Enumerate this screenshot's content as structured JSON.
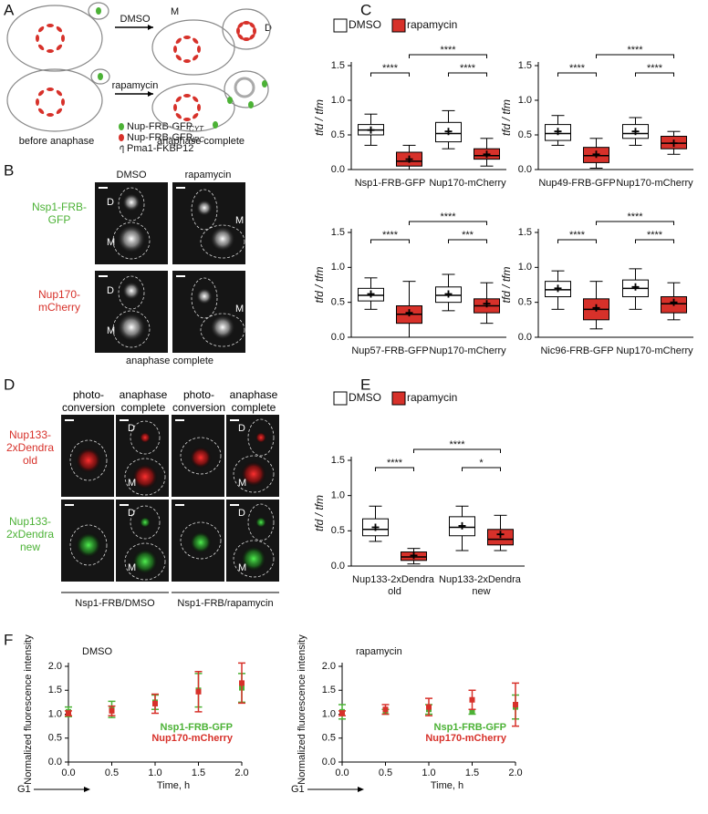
{
  "panel_labels": [
    "A",
    "B",
    "C",
    "D",
    "E",
    "F"
  ],
  "panel_a": {
    "arrows": [
      "DMSO",
      "rapamycin"
    ],
    "cell_labels": [
      "M",
      "D"
    ],
    "stages": [
      "before anaphase",
      "anaphase complete"
    ],
    "legend": [
      {
        "text": "Nup-FRB-GFP",
        "subscript": "CYT"
      },
      {
        "text": "Nup-FRB-GFP",
        "subscript": "NPC"
      },
      {
        "text": "Pma1-FKBP12"
      }
    ]
  },
  "panel_b": {
    "columns": [
      "DMSO",
      "rapamycin"
    ],
    "rows": [
      "Nsp1-FRB-GFP",
      "Nup170-mCherry"
    ],
    "cell_labels": [
      [
        [
          "D",
          "M"
        ],
        [
          "M"
        ]
      ],
      [
        [
          "D",
          "M"
        ],
        [
          "M"
        ]
      ]
    ],
    "caption": "anaphase complete"
  },
  "panel_d": {
    "columns": [
      "photo-conversion",
      "anaphase complete",
      "photo-conversion",
      "anaphase complete"
    ],
    "rows": [
      "Nup133-2xDendra old",
      "Nup133-2xDendra new"
    ],
    "cell_labels": [
      [
        [],
        [
          "D",
          "M"
        ],
        [],
        [
          "D",
          "M"
        ]
      ],
      [
        [],
        [
          "D",
          "M"
        ],
        [],
        [
          "D",
          "M"
        ]
      ]
    ],
    "groups": [
      "Nsp1-FRB/DMSO",
      "Nsp1-FRB/rapamycin"
    ]
  },
  "chart_data": [
    {
      "type": "box",
      "ylabel": "tfd / tfm",
      "categories": [
        "Nsp1-FRB-GFP",
        "Nup170-mCherry"
      ],
      "ylim": [
        0,
        1.5
      ],
      "yticks": [
        {
          "value": 0,
          "label": "0.0"
        },
        0.5,
        {
          "value": 1,
          "label": "1.0"
        },
        1.5
      ],
      "legend": "top left",
      "significance": [
        "****",
        "****",
        "****"
      ],
      "series": [
        {
          "name": "DMSO",
          "color": "#ffffff",
          "min": [
            0.35,
            0.3
          ],
          "q1": [
            0.5,
            0.4
          ],
          "median": [
            0.57,
            0.52
          ],
          "q3": [
            0.65,
            0.68
          ],
          "max": [
            0.8,
            0.85
          ],
          "mean": [
            0.57,
            0.55
          ]
        },
        {
          "name": "rapamycin",
          "color": "#d7312a",
          "min": [
            0,
            0.05
          ],
          "q1": [
            0.05,
            0.15
          ],
          "median": [
            0.12,
            0.2
          ],
          "q3": [
            0.25,
            0.3
          ],
          "max": [
            0.35,
            0.45
          ],
          "mean": [
            0.15,
            0.22
          ]
        }
      ]
    },
    {
      "type": "box",
      "ylabel": "tfd / tfm",
      "categories": [
        "Nup49-FRB-GFP",
        "Nup170-mCherry"
      ],
      "ylim": [
        0,
        1.5
      ],
      "yticks": [
        {
          "value": 0,
          "label": "0.0"
        },
        0.5,
        {
          "value": 1,
          "label": "1.0"
        },
        1.5
      ],
      "significance": [
        "****",
        "****",
        "****"
      ],
      "series": [
        {
          "color": "#ffffff",
          "min": [
            0.35,
            0.35
          ],
          "q1": [
            0.42,
            0.45
          ],
          "median": [
            0.52,
            0.52
          ],
          "q3": [
            0.65,
            0.65
          ],
          "max": [
            0.78,
            0.75
          ],
          "mean": [
            0.55,
            0.55
          ]
        },
        {
          "color": "#d7312a",
          "min": [
            0.02,
            0.22
          ],
          "q1": [
            0.1,
            0.3
          ],
          "median": [
            0.2,
            0.38
          ],
          "q3": [
            0.32,
            0.48
          ],
          "max": [
            0.45,
            0.55
          ],
          "mean": [
            0.22,
            0.38
          ]
        }
      ]
    },
    {
      "type": "box",
      "ylabel": "tfd / tfm",
      "categories": [
        "Nup57-FRB-GFP",
        "Nup170-mCherry"
      ],
      "ylim": [
        0,
        1.5
      ],
      "yticks": [
        {
          "value": 0,
          "label": "0.0"
        },
        0.5,
        {
          "value": 1,
          "label": "1.0"
        },
        1.5
      ],
      "significance": [
        "****",
        "***",
        "****"
      ],
      "series": [
        {
          "color": "#ffffff",
          "min": [
            0.4,
            0.38
          ],
          "q1": [
            0.52,
            0.5
          ],
          "median": [
            0.6,
            0.6
          ],
          "q3": [
            0.7,
            0.72
          ],
          "max": [
            0.85,
            0.9
          ],
          "mean": [
            0.62,
            0.62
          ]
        },
        {
          "color": "#d7312a",
          "min": [
            0,
            0.2
          ],
          "q1": [
            0.2,
            0.35
          ],
          "median": [
            0.33,
            0.45
          ],
          "q3": [
            0.45,
            0.55
          ],
          "max": [
            0.8,
            0.78
          ],
          "mean": [
            0.35,
            0.48
          ]
        }
      ]
    },
    {
      "type": "box",
      "ylabel": "tfd / tfm",
      "categories": [
        "Nic96-FRB-GFP",
        "Nup170-mCherry"
      ],
      "ylim": [
        0,
        1.5
      ],
      "yticks": [
        {
          "value": 0,
          "label": "0.0"
        },
        0.5,
        {
          "value": 1,
          "label": "1.0"
        },
        1.5
      ],
      "significance": [
        "****",
        "****",
        "****"
      ],
      "series": [
        {
          "color": "#ffffff",
          "min": [
            0.4,
            0.4
          ],
          "q1": [
            0.58,
            0.58
          ],
          "median": [
            0.68,
            0.7
          ],
          "q3": [
            0.8,
            0.82
          ],
          "max": [
            0.95,
            0.98
          ],
          "mean": [
            0.7,
            0.72
          ]
        },
        {
          "color": "#d7312a",
          "min": [
            0.12,
            0.25
          ],
          "q1": [
            0.25,
            0.35
          ],
          "median": [
            0.4,
            0.48
          ],
          "q3": [
            0.55,
            0.58
          ],
          "max": [
            0.8,
            0.78
          ],
          "mean": [
            0.42,
            0.5
          ]
        }
      ]
    },
    {
      "type": "box",
      "ylabel": "tfd / tfm",
      "categories": [
        "Nup133-2xDendra old",
        "Nup133-2xDendra new"
      ],
      "ylim": [
        0,
        1.5
      ],
      "yticks": [
        {
          "value": 0,
          "label": "0.0"
        },
        0.5,
        {
          "value": 1,
          "label": "1.0"
        },
        1.5
      ],
      "legend": "top left",
      "significance": [
        "****",
        "*",
        "****"
      ],
      "series": [
        {
          "name": "DMSO",
          "color": "#ffffff",
          "min": [
            0.35,
            0.22
          ],
          "q1": [
            0.43,
            0.43
          ],
          "median": [
            0.52,
            0.55
          ],
          "q3": [
            0.67,
            0.7
          ],
          "max": [
            0.85,
            0.85
          ],
          "mean": [
            0.55,
            0.57
          ]
        },
        {
          "name": "rapamycin",
          "color": "#d7312a",
          "min": [
            0.03,
            0.22
          ],
          "q1": [
            0.08,
            0.3
          ],
          "median": [
            0.13,
            0.38
          ],
          "q3": [
            0.2,
            0.52
          ],
          "max": [
            0.25,
            0.72
          ],
          "mean": [
            0.15,
            0.45
          ]
        }
      ]
    },
    {
      "type": "errorbar",
      "title": "DMSO",
      "xlabel": "Time, h",
      "ylabel": "Normalized fluorescence intensity",
      "annotation": "G1",
      "x": [
        0,
        0.5,
        1,
        1.5,
        2
      ],
      "xlim": [
        0,
        2
      ],
      "xticks": [
        {
          "value": 0,
          "label": "0.0"
        },
        0.5,
        {
          "value": 1,
          "label": "1.0"
        },
        1.5,
        {
          "value": 2,
          "label": "2.0"
        }
      ],
      "ylim": [
        0,
        2
      ],
      "yticks": [
        {
          "value": 0,
          "label": "0.0"
        },
        0.5,
        {
          "value": 1,
          "label": "1.0"
        },
        1.5,
        {
          "value": 2,
          "label": "2.0"
        }
      ],
      "legend": "lower right",
      "series": [
        {
          "name": "Nsp1-FRB-GFP",
          "color": "#4cb236",
          "values": [
            1.05,
            1.1,
            1.25,
            1.5,
            1.55
          ],
          "errors": [
            0.1,
            0.17,
            0.15,
            0.35,
            0.3
          ]
        },
        {
          "name": "Nup170-mCherry",
          "color": "#d7312a",
          "values": [
            1.02,
            1.07,
            1.22,
            1.47,
            1.65
          ],
          "errors": [
            0.05,
            0.1,
            0.2,
            0.42,
            0.42
          ]
        }
      ]
    },
    {
      "type": "errorbar",
      "title": "rapamycin",
      "xlabel": "Time, h",
      "ylabel": "Normalized fluorescence intensity",
      "annotation": "G1",
      "x": [
        0,
        0.5,
        1,
        1.5,
        2
      ],
      "xlim": [
        0,
        2
      ],
      "xticks": [
        {
          "value": 0,
          "label": "0.0"
        },
        0.5,
        {
          "value": 1,
          "label": "1.0"
        },
        1.5,
        {
          "value": 2,
          "label": "2.0"
        }
      ],
      "ylim": [
        0,
        2
      ],
      "yticks": [
        {
          "value": 0,
          "label": "0.0"
        },
        0.5,
        {
          "value": 1,
          "label": "1.0"
        },
        1.5,
        {
          "value": 2,
          "label": "2.0"
        }
      ],
      "legend": "lower right",
      "series": [
        {
          "name": "Nsp1-FRB-GFP",
          "color": "#4cb236",
          "values": [
            1.05,
            1.05,
            1.1,
            1.05,
            1.15
          ],
          "errors": [
            0.15,
            0.05,
            0.1,
            0.05,
            0.25
          ]
        },
        {
          "name": "Nup170-mCherry",
          "color": "#d7312a",
          "values": [
            1.02,
            1.1,
            1.15,
            1.3,
            1.2
          ],
          "errors": [
            0.05,
            0.1,
            0.18,
            0.2,
            0.45
          ]
        }
      ]
    }
  ]
}
